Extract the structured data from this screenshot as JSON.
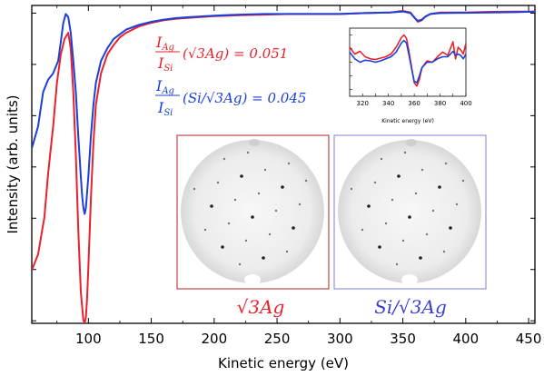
{
  "chart_data": [
    {
      "type": "line",
      "xlabel": "Kinetic energy (eV)",
      "ylabel": "Intensity (arb. units)",
      "xlim": [
        55,
        455
      ],
      "ylim": [
        0,
        1
      ],
      "xticks": [
        100,
        150,
        200,
        250,
        300,
        350,
        400,
        450
      ],
      "y_tick_labels_shown": false,
      "grid": false,
      "series": [
        {
          "color": "#e8222c",
          "x": [
            55,
            60,
            65,
            68,
            72,
            75,
            78,
            81,
            84,
            86,
            88,
            90,
            92,
            94,
            96,
            97,
            98,
            99,
            100,
            102,
            104,
            106,
            110,
            115,
            120,
            125,
            130,
            140,
            150,
            160,
            170,
            180,
            200,
            220,
            240,
            260,
            280,
            300,
            320,
            340,
            350,
            356,
            360,
            362,
            365,
            368,
            372,
            380,
            400,
            420,
            440,
            455
          ],
          "y": [
            0.17,
            0.22,
            0.34,
            0.48,
            0.63,
            0.77,
            0.86,
            0.91,
            0.93,
            0.88,
            0.74,
            0.54,
            0.3,
            0.1,
            0.01,
            0.0,
            0.02,
            0.08,
            0.18,
            0.4,
            0.58,
            0.7,
            0.8,
            0.86,
            0.89,
            0.915,
            0.93,
            0.95,
            0.962,
            0.97,
            0.975,
            0.978,
            0.983,
            0.986,
            0.988,
            0.99,
            0.99,
            0.99,
            0.993,
            0.995,
            1.0,
            0.995,
            0.975,
            0.965,
            0.97,
            0.982,
            0.99,
            0.995,
            0.995,
            0.997,
            0.998,
            0.998
          ]
        },
        {
          "color": "#1c3fd9",
          "x": [
            55,
            60,
            64,
            68,
            72,
            76,
            78,
            80,
            82,
            84,
            86,
            88,
            90,
            92,
            94,
            95,
            96,
            97,
            98,
            100,
            102,
            104,
            106,
            110,
            115,
            120,
            125,
            130,
            140,
            150,
            160,
            170,
            180,
            200,
            220,
            240,
            260,
            280,
            300,
            320,
            340,
            350,
            356,
            360,
            362,
            365,
            368,
            372,
            380,
            400,
            420,
            440,
            455
          ],
          "y": [
            0.56,
            0.63,
            0.74,
            0.78,
            0.8,
            0.84,
            0.9,
            0.96,
            0.99,
            0.98,
            0.93,
            0.84,
            0.74,
            0.6,
            0.47,
            0.41,
            0.37,
            0.35,
            0.37,
            0.47,
            0.6,
            0.7,
            0.77,
            0.84,
            0.88,
            0.91,
            0.925,
            0.94,
            0.955,
            0.965,
            0.972,
            0.977,
            0.98,
            0.985,
            0.988,
            0.99,
            0.99,
            0.99,
            0.99,
            0.993,
            0.995,
            0.998,
            0.993,
            0.975,
            0.968,
            0.972,
            0.982,
            0.99,
            0.993,
            0.994,
            0.995,
            0.996,
            0.998
          ]
        }
      ]
    },
    {
      "type": "line",
      "xlabel": "Kinetic energy (eV)",
      "xlim": [
        310,
        400
      ],
      "ylim": [
        0,
        1
      ],
      "xticks": [
        320,
        330,
        340,
        350,
        360,
        370,
        380,
        390,
        400
      ],
      "series": [
        {
          "color": "#e8222c",
          "x": [
            310,
            314,
            318,
            322,
            326,
            330,
            334,
            338,
            342,
            346,
            350,
            352,
            354,
            356,
            358,
            360,
            362,
            364,
            366,
            370,
            374,
            378,
            382,
            386,
            390,
            392,
            394,
            396,
            398,
            400
          ],
          "y": [
            0.72,
            0.62,
            0.66,
            0.58,
            0.55,
            0.54,
            0.56,
            0.58,
            0.62,
            0.72,
            0.86,
            0.9,
            0.85,
            0.65,
            0.42,
            0.2,
            0.15,
            0.25,
            0.42,
            0.52,
            0.5,
            0.58,
            0.65,
            0.6,
            0.8,
            0.55,
            0.72,
            0.68,
            0.62,
            0.78
          ]
        },
        {
          "color": "#1c3fd9",
          "x": [
            310,
            314,
            318,
            322,
            326,
            330,
            334,
            338,
            342,
            346,
            350,
            352,
            354,
            356,
            358,
            360,
            362,
            364,
            366,
            370,
            374,
            378,
            382,
            386,
            390,
            392,
            394,
            396,
            398,
            400
          ],
          "y": [
            0.65,
            0.55,
            0.5,
            0.53,
            0.52,
            0.5,
            0.52,
            0.55,
            0.58,
            0.65,
            0.78,
            0.82,
            0.78,
            0.6,
            0.4,
            0.22,
            0.2,
            0.3,
            0.42,
            0.5,
            0.5,
            0.55,
            0.58,
            0.58,
            0.66,
            0.6,
            0.62,
            0.6,
            0.55,
            0.62
          ]
        }
      ]
    }
  ],
  "annotations": {
    "red_ratio": {
      "numerator": "I",
      "numerator_sub": "Ag",
      "denominator": "I",
      "denominator_sub": "Si",
      "argument": "(√3Ag) = 0.051"
    },
    "blue_ratio": {
      "numerator": "I",
      "numerator_sub": "Ag",
      "denominator": "I",
      "denominator_sub": "Si",
      "argument": "(Si/√3Ag) = 0.045"
    },
    "red_leed_label": "√3Ag",
    "blue_leed_label": "Si/√3Ag"
  },
  "colors": {
    "red": "#e8222c",
    "blue": "#1c3fd9",
    "red_frame": "#b32020",
    "blue_frame": "#7a7fd0"
  }
}
